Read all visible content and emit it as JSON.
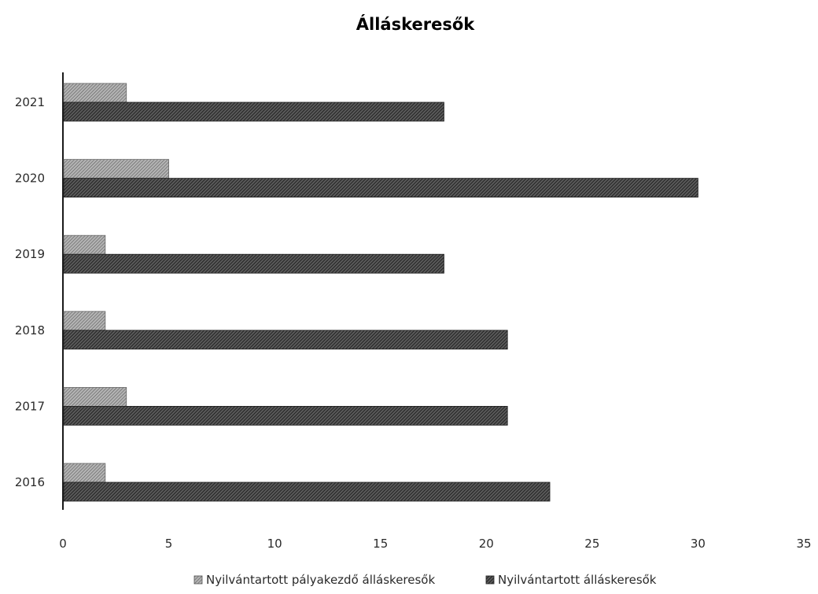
{
  "chart_data": {
    "type": "bar",
    "orientation": "horizontal",
    "title": "Álláskeresők",
    "categories": [
      "2021",
      "2020",
      "2019",
      "2018",
      "2017",
      "2016"
    ],
    "series": [
      {
        "name": "Nyilvántartott pályakezdő álláskeresők",
        "values": [
          3,
          5,
          2,
          2,
          3,
          2
        ],
        "color": "#8c8c8c"
      },
      {
        "name": "Nyilvántartott álláskeresők",
        "values": [
          18,
          30,
          18,
          21,
          21,
          23
        ],
        "color": "#3a3a3a"
      }
    ],
    "xlim": [
      0,
      35
    ],
    "xticks": [
      "0",
      "5",
      "10",
      "15",
      "20",
      "25",
      "30",
      "35"
    ],
    "xlabel": "",
    "ylabel": "",
    "grid": false,
    "legend_position": "bottom"
  }
}
